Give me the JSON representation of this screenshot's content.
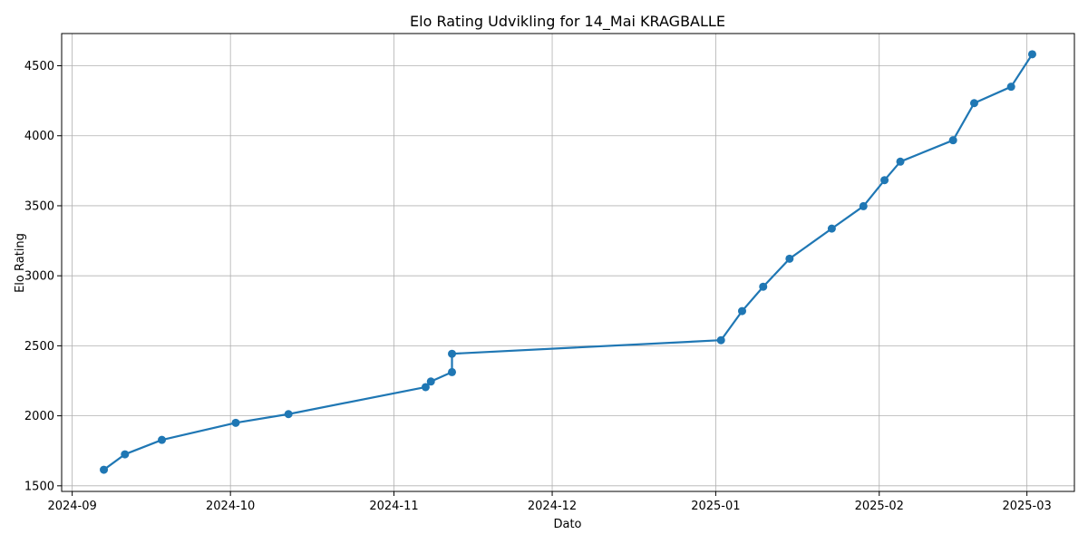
{
  "chart_data": {
    "type": "line",
    "title": "Elo Rating Udvikling for 14_Mai KRAGBALLE",
    "xlabel": "Dato",
    "ylabel": "Elo Rating",
    "grid": true,
    "x_axis_type": "date",
    "xlim": [
      "2024-08-30",
      "2025-03-10"
    ],
    "ylim": [
      1460,
      4730
    ],
    "x_ticks": [
      "2024-09-01",
      "2024-10-01",
      "2024-11-01",
      "2024-12-01",
      "2025-01-01",
      "2025-02-01",
      "2025-03-01"
    ],
    "x_tick_labels": [
      "2024-09",
      "2024-10",
      "2024-11",
      "2024-12",
      "2025-01",
      "2025-02",
      "2025-03"
    ],
    "y_ticks": [
      1500,
      2000,
      2500,
      3000,
      3500,
      4000,
      4500
    ],
    "y_tick_labels": [
      "1500",
      "2000",
      "2500",
      "3000",
      "3500",
      "4000",
      "4500"
    ],
    "series": [
      {
        "color": "#1f77b4",
        "marker": "circle",
        "points": [
          {
            "x": "2024-09-07",
            "y": 1615
          },
          {
            "x": "2024-09-11",
            "y": 1725
          },
          {
            "x": "2024-09-18",
            "y": 1828
          },
          {
            "x": "2024-10-02",
            "y": 1950
          },
          {
            "x": "2024-10-12",
            "y": 2012
          },
          {
            "x": "2024-11-07",
            "y": 2205
          },
          {
            "x": "2024-11-08",
            "y": 2245
          },
          {
            "x": "2024-11-12",
            "y": 2312
          },
          {
            "x": "2024-11-12",
            "y": 2443
          },
          {
            "x": "2025-01-02",
            "y": 2540
          },
          {
            "x": "2025-01-06",
            "y": 2748
          },
          {
            "x": "2025-01-10",
            "y": 2922
          },
          {
            "x": "2025-01-15",
            "y": 3122
          },
          {
            "x": "2025-01-23",
            "y": 3337
          },
          {
            "x": "2025-01-29",
            "y": 3497
          },
          {
            "x": "2025-02-02",
            "y": 3683
          },
          {
            "x": "2025-02-05",
            "y": 3815
          },
          {
            "x": "2025-02-15",
            "y": 3968
          },
          {
            "x": "2025-02-19",
            "y": 4233
          },
          {
            "x": "2025-02-26",
            "y": 4350
          },
          {
            "x": "2025-03-02",
            "y": 4582
          }
        ]
      }
    ]
  }
}
